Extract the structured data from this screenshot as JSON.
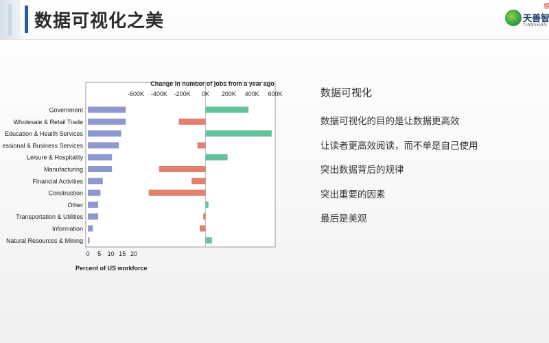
{
  "slide": {
    "title": "数据可视化之美",
    "logo": {
      "name": "天善智",
      "sub": "TIANSHAN",
      "stamp": "感谢关"
    }
  },
  "content": {
    "heading": "数据可视化",
    "bullets": [
      "数据可视化的目的是让数据更高效",
      "让读者更高效阅读，而不单是自己使用",
      "突出数据背后的规律",
      "突出重要的因素",
      "最后是美观"
    ]
  },
  "chart_data": {
    "type": "bar",
    "categories": [
      "Government",
      "Wholesale & Retail Trade",
      "Education & Health Services",
      "essional & Business Services",
      "Leisure & Hospitality",
      "Manufacturing",
      "Financial Activities",
      "Construction",
      "Other",
      "Transportation & Utilities",
      "Information",
      "Natural Resources & Mining"
    ],
    "panels": [
      {
        "title": "",
        "xlabel": "Percent of US workforce",
        "xlim": [
          0,
          20
        ],
        "ticks": [
          "0",
          "5",
          "10",
          "15",
          "20"
        ],
        "tick_values": [
          0,
          5,
          10,
          15,
          20
        ],
        "series": [
          {
            "values": [
              16.5,
              16.5,
              14.5,
              13.5,
              10.5,
              10.5,
              6.5,
              5.5,
              4.5,
              4.5,
              2.2,
              0.7
            ],
            "color": "#8f97cf"
          }
        ]
      },
      {
        "title": "Change in number of jobs from a year ago",
        "xlabel": "",
        "xlim": [
          -600,
          600
        ],
        "ticks": [
          "-600K",
          "-400K",
          "-200K",
          "0K",
          "200K",
          "400K",
          "600K"
        ],
        "tick_values": [
          -600,
          -400,
          -200,
          0,
          200,
          400,
          600
        ],
        "series": [
          {
            "values": [
              370,
              -230,
              570,
              -70,
              190,
              -400,
              -120,
              -490,
              25,
              -20,
              -50,
              55
            ]
          }
        ],
        "positive_color": "#63c29b",
        "negative_color": "#e0806d"
      }
    ]
  }
}
